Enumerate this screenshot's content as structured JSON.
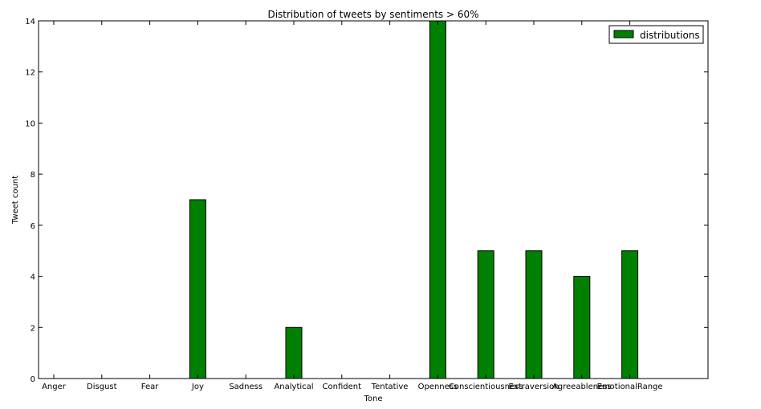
{
  "chart_data": {
    "type": "bar",
    "title": "Distribution of tweets by sentiments > 60%",
    "xlabel": "Tone",
    "ylabel": "Tweet count",
    "categories": [
      "Anger",
      "Disgust",
      "Fear",
      "Joy",
      "Sadness",
      "Analytical",
      "Confident",
      "Tentative",
      "Openness",
      "Conscientiousness",
      "Extraversion",
      "Agreeableness",
      "EmotionalRange"
    ],
    "series": [
      {
        "name": "distributions",
        "values": [
          0,
          0,
          0,
          7,
          0,
          2,
          0,
          0,
          14,
          5,
          5,
          4,
          5
        ],
        "color": "#008000"
      }
    ],
    "ylim": [
      0,
      14
    ],
    "yticks": [
      0,
      2,
      4,
      6,
      8,
      10,
      12,
      14
    ],
    "grid": false,
    "legend_position": "top-right"
  }
}
